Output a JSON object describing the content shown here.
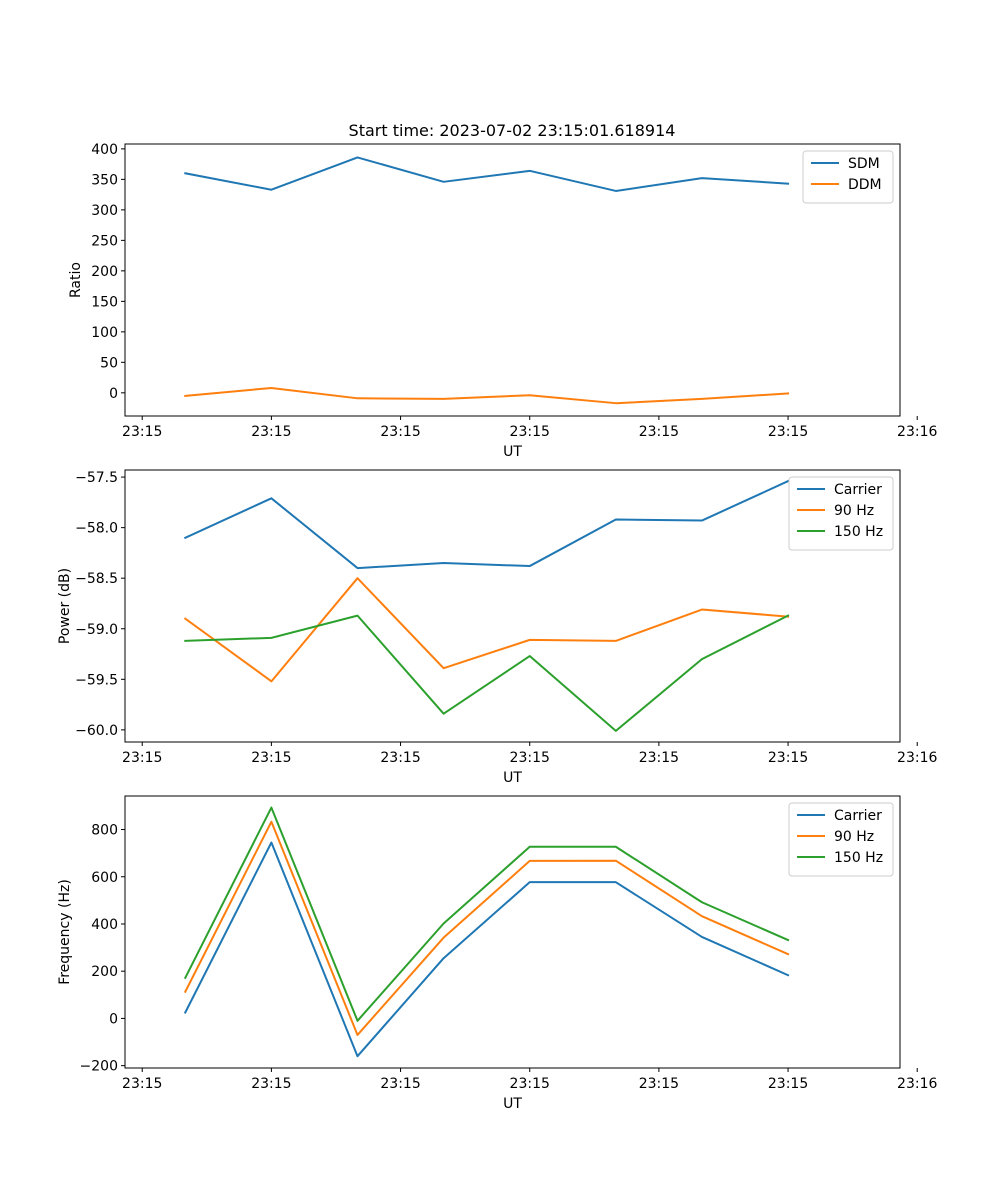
{
  "figure": {
    "title": "Start time: 2023-07-02 23:15:01.618914"
  },
  "chart_data": [
    {
      "type": "line",
      "id": "ratio",
      "xlabel": "UT",
      "ylabel": "Ratio",
      "xlim": [
        -0.2,
        8.8
      ],
      "x": [
        0.5,
        1.5,
        2.5,
        3.5,
        4.5,
        5.5,
        6.5,
        7.5
      ],
      "ylim": [
        -38,
        408
      ],
      "yticks": [
        0,
        50,
        100,
        150,
        200,
        250,
        300,
        350,
        400
      ],
      "ytick_labels": [
        "0",
        "50",
        "100",
        "150",
        "200",
        "250",
        "300",
        "350",
        "400"
      ],
      "xticks": [
        0,
        1.5,
        3,
        4.5,
        6,
        7.5,
        9
      ],
      "xtick_labels": [
        "23:15",
        "23:15",
        "23:15",
        "23:15",
        "23:15",
        "23:15",
        "23:16"
      ],
      "legend_position": "top-right",
      "series": [
        {
          "name": "SDM",
          "color": "#1f77b4",
          "values": [
            360,
            333,
            386,
            346,
            364,
            331,
            352,
            343
          ]
        },
        {
          "name": "DDM",
          "color": "#ff7f0e",
          "values": [
            -5,
            8,
            -9,
            -10,
            -4,
            -17,
            -10,
            -1
          ]
        }
      ]
    },
    {
      "type": "line",
      "id": "power",
      "xlabel": "UT",
      "ylabel": "Power (dB)",
      "xlim": [
        -0.2,
        8.8
      ],
      "x": [
        0.5,
        1.5,
        2.5,
        3.5,
        4.5,
        5.5,
        6.5,
        7.5
      ],
      "ylim": [
        -60.12,
        -57.43
      ],
      "yticks": [
        -60.0,
        -59.5,
        -59.0,
        -58.5,
        -58.0,
        -57.5
      ],
      "ytick_labels": [
        "−60.0",
        "−59.5",
        "−59.0",
        "−58.5",
        "−58.0",
        "−57.5"
      ],
      "xticks": [
        0,
        1.5,
        3,
        4.5,
        6,
        7.5,
        9
      ],
      "xtick_labels": [
        "23:15",
        "23:15",
        "23:15",
        "23:15",
        "23:15",
        "23:15",
        "23:16"
      ],
      "legend_position": "top-right",
      "series": [
        {
          "name": "Carrier",
          "color": "#1f77b4",
          "values": [
            -58.1,
            -57.71,
            -58.4,
            -58.35,
            -58.38,
            -57.92,
            -57.93,
            -57.54
          ]
        },
        {
          "name": "90 Hz",
          "color": "#ff7f0e",
          "values": [
            -58.9,
            -59.52,
            -58.5,
            -59.39,
            -59.11,
            -59.12,
            -58.81,
            -58.88
          ]
        },
        {
          "name": "150 Hz",
          "color": "#2ca02c",
          "values": [
            -59.12,
            -59.09,
            -58.87,
            -59.84,
            -59.27,
            -60.01,
            -59.3,
            -58.87
          ]
        }
      ]
    },
    {
      "type": "line",
      "id": "frequency",
      "xlabel": "UT",
      "ylabel": "Frequency (Hz)",
      "xlim": [
        -0.2,
        8.8
      ],
      "x": [
        0.5,
        1.5,
        2.5,
        3.5,
        4.5,
        5.5,
        6.5,
        7.5
      ],
      "ylim": [
        -210,
        942
      ],
      "yticks": [
        -200,
        0,
        200,
        400,
        600,
        800
      ],
      "ytick_labels": [
        "−200",
        "0",
        "200",
        "400",
        "600",
        "800"
      ],
      "xticks": [
        0,
        1.5,
        3,
        4.5,
        6,
        7.5,
        9
      ],
      "xtick_labels": [
        "23:15",
        "23:15",
        "23:15",
        "23:15",
        "23:15",
        "23:15",
        "23:16"
      ],
      "legend_position": "top-right",
      "series": [
        {
          "name": "Carrier",
          "color": "#1f77b4",
          "values": [
            25,
            745,
            -160,
            255,
            577,
            577,
            345,
            183
          ]
        },
        {
          "name": "90 Hz",
          "color": "#ff7f0e",
          "values": [
            113,
            833,
            -70,
            342,
            667,
            668,
            433,
            272
          ]
        },
        {
          "name": "150 Hz",
          "color": "#2ca02c",
          "values": [
            172,
            893,
            -10,
            402,
            727,
            727,
            492,
            332
          ]
        }
      ]
    }
  ]
}
